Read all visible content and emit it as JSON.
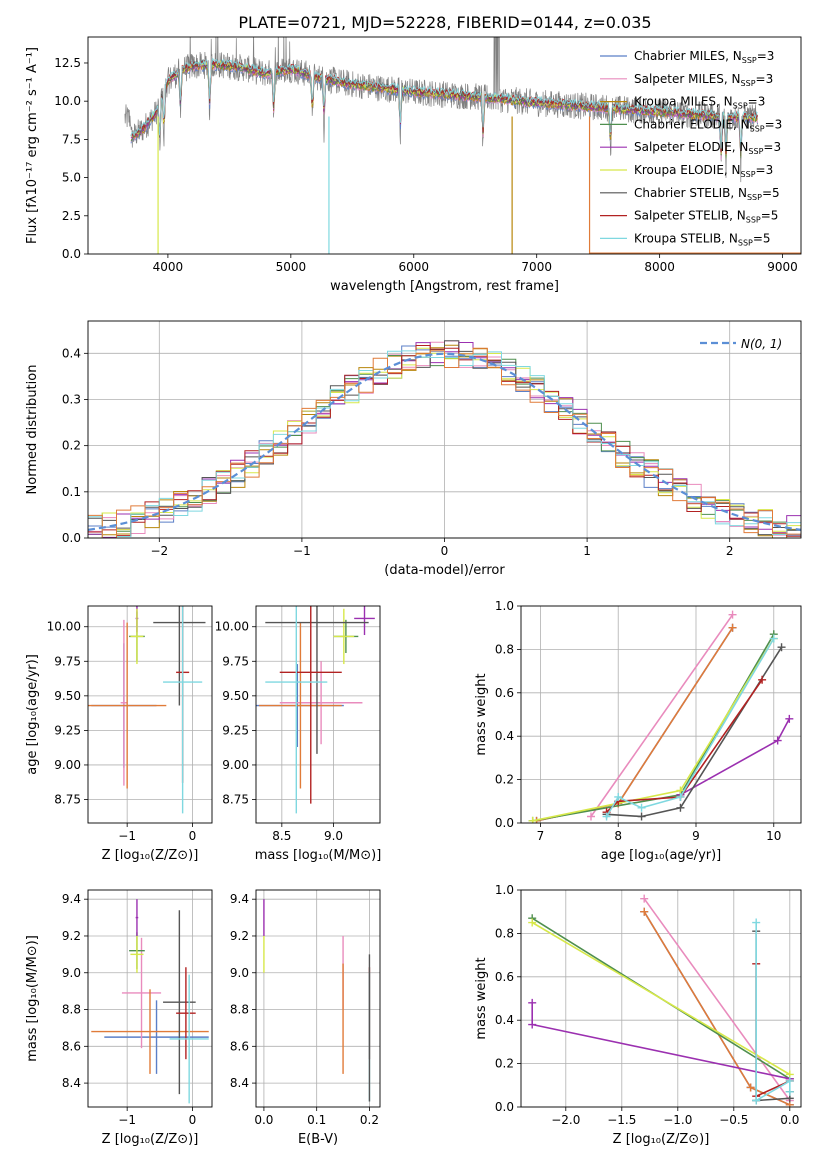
{
  "figure_title": "PLATE=0721, MJD=52228, FIBERID=0144, z=0.035",
  "legend_labels": [
    "Chabrier MILES, Nₛₛₚ=3"
  ],
  "chart_data": [
    {
      "id": "spectrum",
      "type": "line",
      "title": "PLATE=0721, MJD=52228, FIBERID=0144, z=0.035",
      "xlabel": "wavelength [Angstrom, rest frame]",
      "ylabel": "Flux [fλ10⁻¹⁷ erg cm⁻² s⁻¹ A⁻¹]",
      "xlim": [
        3350,
        9150
      ],
      "ylim": [
        0,
        14.2
      ],
      "xticks": [
        4000,
        5000,
        6000,
        7000,
        8000,
        9000
      ],
      "yticks": [
        0.0,
        2.5,
        5.0,
        7.5,
        10.0,
        12.5
      ],
      "ytick_labels": [
        "0.0",
        "2.5",
        "5.0",
        "7.5",
        "10.0",
        "12.5"
      ],
      "legend_position": "top-right",
      "series": [
        {
          "name": "Chabrier MILES, N",
          "sub": "SSP",
          "suffix": "=3",
          "color": "#5b7fc7"
        },
        {
          "name": "Salpeter MILES, N",
          "sub": "SSP",
          "suffix": "=3",
          "color": "#e98bbd"
        },
        {
          "name": "Kroupa MILES, N",
          "sub": "SSP",
          "suffix": "=3",
          "color": "#b8860b"
        },
        {
          "name": "Chabrier ELODIE, N",
          "sub": "SSP",
          "suffix": "=3",
          "color": "#4f8f4f"
        },
        {
          "name": "Salpeter ELODIE, N",
          "sub": "SSP",
          "suffix": "=3",
          "color": "#9b30b0"
        },
        {
          "name": "Kroupa ELODIE, N",
          "sub": "SSP",
          "suffix": "=3",
          "color": "#d7e84a"
        },
        {
          "name": "Chabrier STELIB, N",
          "sub": "SSP",
          "suffix": "=5",
          "color": "#555555"
        },
        {
          "name": "Salpeter STELIB, N",
          "sub": "SSP",
          "suffix": "=5",
          "color": "#b22222"
        },
        {
          "name": "Kroupa STELIB, N",
          "sub": "SSP",
          "suffix": "=5",
          "color": "#7fd8e0"
        }
      ],
      "continuum_shape": [
        [
          3700,
          7.6
        ],
        [
          3800,
          8.2
        ],
        [
          3900,
          9.2
        ],
        [
          4000,
          11.3
        ],
        [
          4100,
          12.0
        ],
        [
          4200,
          12.3
        ],
        [
          4400,
          12.4
        ],
        [
          4600,
          12.2
        ],
        [
          4800,
          11.8
        ],
        [
          5000,
          12.1
        ],
        [
          5200,
          11.6
        ],
        [
          5500,
          11.1
        ],
        [
          6000,
          10.6
        ],
        [
          6500,
          10.3
        ],
        [
          7000,
          9.9
        ],
        [
          7500,
          9.6
        ],
        [
          8000,
          9.3
        ],
        [
          8500,
          9.0
        ],
        [
          8800,
          8.9
        ]
      ],
      "data_spectrum_range": [
        3650,
        8800
      ],
      "model_dropouts": [
        {
          "x": 3920,
          "y": 0
        },
        {
          "x": 5310,
          "y": 0
        },
        {
          "x": 6800,
          "y": 0
        },
        {
          "x": 7430,
          "y": 0
        }
      ]
    },
    {
      "id": "residual_histogram",
      "type": "bar",
      "xlabel": "(data-model)/error",
      "ylabel": "Normed distribution",
      "xlim": [
        -2.5,
        2.5
      ],
      "ylim": [
        0,
        0.47
      ],
      "xticks": [
        -2,
        -1,
        0,
        1,
        2
      ],
      "xtick_labels": [
        "−2",
        "−1",
        "0",
        "1",
        "2"
      ],
      "yticks": [
        0.0,
        0.1,
        0.2,
        0.3,
        0.4
      ],
      "ytick_labels": [
        "0.0",
        "0.1",
        "0.2",
        "0.3",
        "0.4"
      ],
      "grid": true,
      "legend_position": "top-right",
      "reference_curve": {
        "name": "N(0, 1)",
        "mu": 0,
        "sigma": 1,
        "color": "#5b8fd6",
        "style": "dashed"
      },
      "bin_width": 0.1,
      "approx_shape": "standard normal with per-series scatter of about ±0.03"
    },
    {
      "id": "age_vs_Z",
      "type": "scatter",
      "xlabel": "Z [log₁₀(Z/Z⊙)]",
      "ylabel": "age  [log₁₀(age/yr)]",
      "xlim": [
        -1.6,
        0.3
      ],
      "ylim": [
        8.58,
        10.15
      ],
      "xticks": [
        -1,
        0
      ],
      "xtick_labels": [
        "−1",
        "0"
      ],
      "yticks": [
        8.75,
        9.0,
        9.25,
        9.5,
        9.75,
        10.0
      ],
      "ytick_labels": [
        "8.75",
        "9.00",
        "9.25",
        "9.50",
        "9.75",
        "10.00"
      ],
      "grid": true,
      "points": [
        {
          "color": "#5b7fc7",
          "x": -1.05,
          "xerr": 0.5,
          "y": 9.43,
          "yerr": 0.45
        },
        {
          "color": "#e98bbd",
          "x": -1.05,
          "xerr": 0.05,
          "y": 9.45,
          "yerr": 0.6
        },
        {
          "color": "#e07b39",
          "x": -1.0,
          "xerr": 0.6,
          "y": 9.43,
          "yerr": 0.6
        },
        {
          "color": "#4f8f4f",
          "x": -0.85,
          "xerr": 0.12,
          "y": 9.93,
          "yerr": 0.18
        },
        {
          "color": "#9b30b0",
          "x": -0.85,
          "xerr": 0.02,
          "y": 10.06,
          "yerr": 0.1
        },
        {
          "color": "#d7e84a",
          "x": -0.85,
          "xerr": 0.1,
          "y": 9.93,
          "yerr": 0.2
        },
        {
          "color": "#555555",
          "x": -0.2,
          "xerr": 0.4,
          "y": 10.03,
          "yerr": 0.6
        },
        {
          "color": "#b22222",
          "x": -0.15,
          "xerr": 0.1,
          "y": 9.67,
          "yerr": 0.8
        },
        {
          "color": "#7fd8e0",
          "x": -0.15,
          "xerr": 0.3,
          "y": 9.6,
          "yerr": 0.95
        }
      ]
    },
    {
      "id": "age_vs_mass",
      "type": "scatter",
      "xlabel": "mass [log₁₀(M/M⊙)]",
      "ylabel": "",
      "xlim": [
        8.25,
        9.45
      ],
      "ylim": [
        8.58,
        10.15
      ],
      "xticks": [
        8.5,
        9.0
      ],
      "xtick_labels": [
        "8.5",
        "9.0"
      ],
      "yticks": [
        8.75,
        9.0,
        9.25,
        9.5,
        9.75,
        10.0
      ],
      "ytick_labels": [
        "8.75",
        "9.00",
        "9.25",
        "9.50",
        "9.75",
        "10.00"
      ],
      "grid": true,
      "points": [
        {
          "color": "#5b7fc7",
          "x": 8.65,
          "xerr": 0.45,
          "y": 9.43,
          "yerr": 0.3
        },
        {
          "color": "#e98bbd",
          "x": 8.88,
          "xerr": 0.4,
          "y": 9.45,
          "yerr": 0.3
        },
        {
          "color": "#e07b39",
          "x": 8.68,
          "xerr": 0.4,
          "y": 9.43,
          "yerr": 0.6
        },
        {
          "color": "#4f8f4f",
          "x": 9.12,
          "xerr": 0.12,
          "y": 9.93,
          "yerr": 0.12
        },
        {
          "color": "#9b30b0",
          "x": 9.3,
          "xerr": 0.1,
          "y": 10.06,
          "yerr": 0.12
        },
        {
          "color": "#d7e84a",
          "x": 9.1,
          "xerr": 0.1,
          "y": 9.93,
          "yerr": 0.2
        },
        {
          "color": "#555555",
          "x": 8.84,
          "xerr": 0.5,
          "y": 10.03,
          "yerr": 0.95
        },
        {
          "color": "#b22222",
          "x": 8.78,
          "xerr": 0.3,
          "y": 9.67,
          "yerr": 0.95
        },
        {
          "color": "#7fd8e0",
          "x": 8.64,
          "xerr": 0.3,
          "y": 9.6,
          "yerr": 0.95
        }
      ]
    },
    {
      "id": "weight_vs_age",
      "type": "line",
      "xlabel": "age  [log₁₀(age/yr)]",
      "ylabel": "mass weight",
      "xlim": [
        6.75,
        10.35
      ],
      "ylim": [
        0,
        1.0
      ],
      "xticks": [
        7,
        8,
        9,
        10
      ],
      "yticks": [
        0.0,
        0.2,
        0.4,
        0.6,
        0.8,
        1.0
      ],
      "ytick_labels": [
        "0.0",
        "0.2",
        "0.4",
        "0.6",
        "0.8",
        "1.0"
      ],
      "grid": true,
      "series": [
        {
          "color": "#5b7fc7",
          "x": [
            6.95,
            8.0,
            9.47
          ],
          "y": [
            0.01,
            0.09,
            0.9
          ]
        },
        {
          "color": "#e98bbd",
          "x": [
            7.65,
            9.47
          ],
          "y": [
            0.03,
            0.96
          ]
        },
        {
          "color": "#e07b39",
          "x": [
            6.95,
            8.0,
            9.47
          ],
          "y": [
            0.01,
            0.09,
            0.9
          ]
        },
        {
          "color": "#4f8f4f",
          "x": [
            6.9,
            8.8,
            10.0
          ],
          "y": [
            0.01,
            0.13,
            0.87
          ]
        },
        {
          "color": "#9b30b0",
          "x": [
            8.8,
            10.05,
            10.2
          ],
          "y": [
            0.13,
            0.38,
            0.48
          ]
        },
        {
          "color": "#d7e84a",
          "x": [
            6.9,
            8.8,
            10.0
          ],
          "y": [
            0.01,
            0.15,
            0.85
          ]
        },
        {
          "color": "#555555",
          "x": [
            7.85,
            8.3,
            8.8,
            10.1
          ],
          "y": [
            0.04,
            0.03,
            0.07,
            0.81
          ]
        },
        {
          "color": "#b22222",
          "x": [
            7.85,
            8.0,
            8.8,
            9.85
          ],
          "y": [
            0.05,
            0.1,
            0.12,
            0.66
          ]
        },
        {
          "color": "#7fd8e0",
          "x": [
            7.85,
            8.0,
            8.3,
            8.8,
            10.0
          ],
          "y": [
            0.03,
            0.12,
            0.07,
            0.12,
            0.85
          ]
        }
      ]
    },
    {
      "id": "mass_vs_Z",
      "type": "scatter",
      "xlabel": "Z [log₁₀(Z/Z⊙)]",
      "ylabel": "mass [log₁₀(M/M⊙)]",
      "xlim": [
        -1.6,
        0.3
      ],
      "ylim": [
        8.27,
        9.45
      ],
      "xticks": [
        -1,
        0
      ],
      "xtick_labels": [
        "−1",
        "0"
      ],
      "yticks": [
        8.4,
        8.6,
        8.8,
        9.0,
        9.2,
        9.4
      ],
      "ytick_labels": [
        "8.4",
        "8.6",
        "8.8",
        "9.0",
        "9.2",
        "9.4"
      ],
      "grid": true,
      "points": [
        {
          "color": "#5b7fc7",
          "x": -0.55,
          "xerr": 0.8,
          "y": 8.65,
          "yerr": 0.2
        },
        {
          "color": "#e98bbd",
          "x": -0.78,
          "xerr": 0.3,
          "y": 8.89,
          "yerr": 0.3
        },
        {
          "color": "#e07b39",
          "x": -0.65,
          "xerr": 0.9,
          "y": 8.68,
          "yerr": 0.23
        },
        {
          "color": "#4f8f4f",
          "x": -0.85,
          "xerr": 0.12,
          "y": 9.12,
          "yerr": 0.1
        },
        {
          "color": "#9b30b0",
          "x": -0.85,
          "xerr": 0.02,
          "y": 9.3,
          "yerr": 0.1
        },
        {
          "color": "#d7e84a",
          "x": -0.85,
          "xerr": 0.1,
          "y": 9.1,
          "yerr": 0.1
        },
        {
          "color": "#555555",
          "x": -0.2,
          "xerr": 0.25,
          "y": 8.84,
          "yerr": 0.5
        },
        {
          "color": "#b22222",
          "x": -0.1,
          "xerr": 0.15,
          "y": 8.78,
          "yerr": 0.25
        },
        {
          "color": "#7fd8e0",
          "x": -0.05,
          "xerr": 0.3,
          "y": 8.64,
          "yerr": 0.35
        }
      ]
    },
    {
      "id": "mass_vs_EBV",
      "type": "scatter",
      "xlabel": "E(B-V)",
      "ylabel": "",
      "xlim": [
        -0.015,
        0.22
      ],
      "ylim": [
        8.27,
        9.45
      ],
      "xticks": [
        0.0,
        0.1,
        0.2
      ],
      "xtick_labels": [
        "0.0",
        "0.1",
        "0.2"
      ],
      "yticks": [
        8.4,
        8.6,
        8.8,
        9.0,
        9.2,
        9.4
      ],
      "ytick_labels": [
        "8.4",
        "8.6",
        "8.8",
        "9.0",
        "9.2",
        "9.4"
      ],
      "grid": true,
      "points": [
        {
          "color": "#9b30b0",
          "x": 0.0,
          "xerr": 0,
          "y": 9.3,
          "yerr": 0.1
        },
        {
          "color": "#d7e84a",
          "x": 0.0,
          "xerr": 0,
          "y": 9.1,
          "yerr": 0.1
        },
        {
          "color": "#e98bbd",
          "x": 0.15,
          "xerr": 0,
          "y": 9.0,
          "yerr": 0.2
        },
        {
          "color": "#e07b39",
          "x": 0.15,
          "xerr": 0,
          "y": 8.75,
          "yerr": 0.3
        },
        {
          "color": "#b22222",
          "x": 0.2,
          "xerr": 0,
          "y": 8.78,
          "yerr": 0.25
        },
        {
          "color": "#7fd8e0",
          "x": 0.2,
          "xerr": 0,
          "y": 8.65,
          "yerr": 0.35
        },
        {
          "color": "#555555",
          "x": 0.2,
          "xerr": 0,
          "y": 8.7,
          "yerr": 0.4
        }
      ]
    },
    {
      "id": "weight_vs_Z",
      "type": "line",
      "xlabel": "Z [log₁₀(Z/Z⊙)]",
      "ylabel": "mass weight",
      "xlim": [
        -2.4,
        0.1
      ],
      "ylim": [
        0,
        1.0
      ],
      "xticks": [
        -2.0,
        -1.5,
        -1.0,
        -0.5,
        0.0
      ],
      "xtick_labels": [
        "−2.0",
        "−1.5",
        "−1.0",
        "−0.5",
        "0.0"
      ],
      "yticks": [
        0.0,
        0.2,
        0.4,
        0.6,
        0.8,
        1.0
      ],
      "ytick_labels": [
        "0.0",
        "0.2",
        "0.4",
        "0.6",
        "0.8",
        "1.0"
      ],
      "grid": true,
      "series": [
        {
          "color": "#5b7fc7",
          "x": [
            -1.3,
            -0.35,
            0.0
          ],
          "y": [
            0.9,
            0.09,
            0.01
          ]
        },
        {
          "color": "#e98bbd",
          "x": [
            -1.3,
            0.0
          ],
          "y": [
            0.96,
            0.03
          ]
        },
        {
          "color": "#e07b39",
          "x": [
            -1.3,
            -0.35,
            0.0
          ],
          "y": [
            0.9,
            0.09,
            0.01
          ]
        },
        {
          "color": "#4f8f4f",
          "x": [
            -2.3,
            0.0
          ],
          "y": [
            0.87,
            0.13
          ]
        },
        {
          "color": "#9b30b0",
          "x": [
            -2.3,
            -2.3,
            0.0
          ],
          "y": [
            0.48,
            0.38,
            0.13
          ]
        },
        {
          "color": "#d7e84a",
          "x": [
            -2.3,
            0.0
          ],
          "y": [
            0.85,
            0.15
          ]
        },
        {
          "color": "#555555",
          "x": [
            -0.3,
            -0.3,
            0.0,
            0.0
          ],
          "y": [
            0.81,
            0.03,
            0.04,
            0.07
          ]
        },
        {
          "color": "#b22222",
          "x": [
            -0.3,
            -0.3,
            0.0
          ],
          "y": [
            0.66,
            0.05,
            0.12
          ]
        },
        {
          "color": "#7fd8e0",
          "x": [
            -0.3,
            -0.3,
            0.0,
            0.0
          ],
          "y": [
            0.85,
            0.03,
            0.12,
            0.07
          ]
        }
      ]
    }
  ]
}
